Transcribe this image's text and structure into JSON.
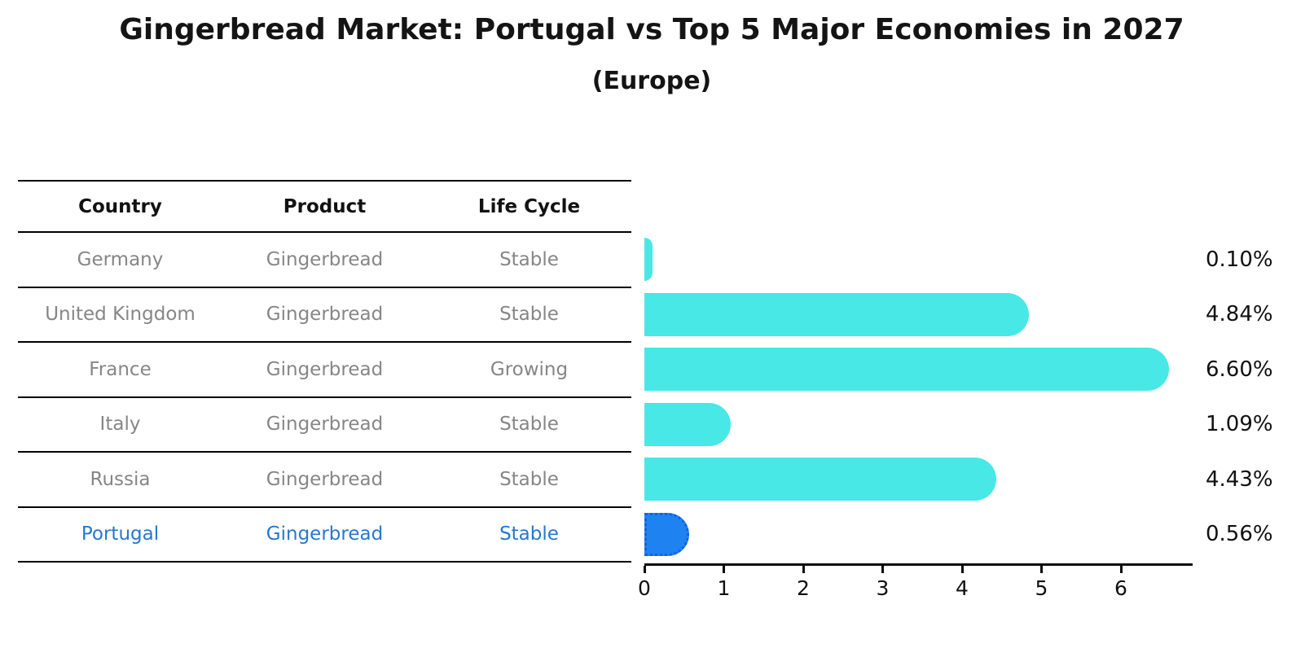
{
  "title": "Gingerbread Market: Portugal vs Top 5 Major Economies in 2027",
  "subtitle": "(Europe)",
  "table": {
    "headers": [
      "Country",
      "Product",
      "Life Cycle"
    ],
    "rows": [
      {
        "country": "Germany",
        "product": "Gingerbread",
        "life_cycle": "Stable",
        "highlight": false
      },
      {
        "country": "United Kingdom",
        "product": "Gingerbread",
        "life_cycle": "Stable",
        "highlight": false
      },
      {
        "country": "France",
        "product": "Gingerbread",
        "life_cycle": "Growing",
        "highlight": false
      },
      {
        "country": "Italy",
        "product": "Gingerbread",
        "life_cycle": "Stable",
        "highlight": false
      },
      {
        "country": "Russia",
        "product": "Gingerbread",
        "life_cycle": "Stable",
        "highlight": false
      },
      {
        "country": "Portugal",
        "product": "Gingerbread",
        "life_cycle": "Stable",
        "highlight": true
      }
    ]
  },
  "chart_data": {
    "type": "bar",
    "orientation": "horizontal",
    "title": "Gingerbread Market: Portugal vs Top 5 Major Economies in 2027",
    "subtitle": "(Europe)",
    "categories": [
      "Germany",
      "United Kingdom",
      "France",
      "Italy",
      "Russia",
      "Portugal"
    ],
    "values": [
      0.1,
      4.84,
      6.6,
      1.09,
      4.43,
      0.56
    ],
    "value_labels": [
      "0.10%",
      "4.84%",
      "6.60%",
      "1.09%",
      "4.43%",
      "0.56%"
    ],
    "x_ticks": [
      0,
      1,
      2,
      3,
      4,
      5,
      6
    ],
    "x_tick_labels": [
      "0",
      "1",
      "2",
      "3",
      "4",
      "5",
      "6"
    ],
    "xlim": [
      0,
      6.9
    ],
    "grid": "off",
    "legend": "none",
    "bar_color": "#48E8E6",
    "highlight_index": 5,
    "highlight_color": "#1E82F0",
    "highlight_border_color": "#1461DE",
    "text_gray": "#868686",
    "text_highlight_blue": "#2678D0"
  }
}
